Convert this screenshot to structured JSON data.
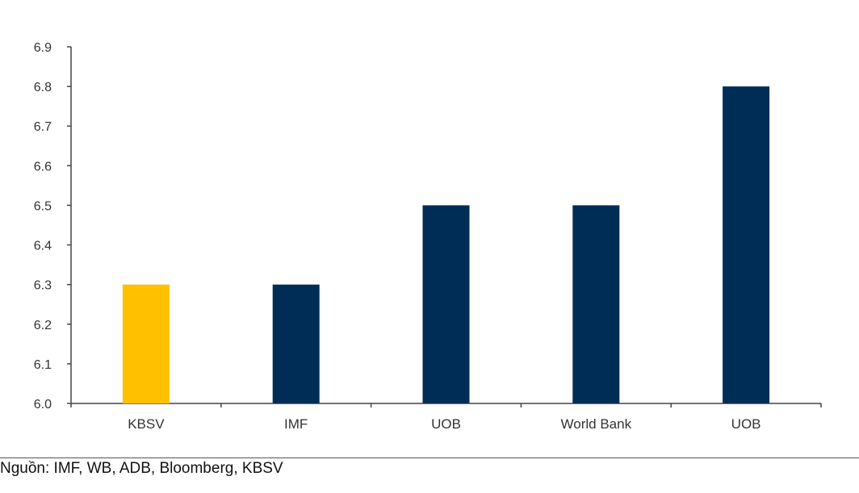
{
  "chart_data": {
    "type": "bar",
    "categories": [
      "KBSV",
      "IMF",
      "UOB",
      "World Bank",
      "UOB"
    ],
    "values": [
      6.3,
      6.3,
      6.5,
      6.5,
      6.8
    ],
    "bar_colors": [
      "#FFC000",
      "#002D56",
      "#002D56",
      "#002D56",
      "#002D56"
    ],
    "ylim": [
      6.0,
      6.9
    ],
    "yticks": [
      "6.0",
      "6.1",
      "6.2",
      "6.3",
      "6.4",
      "6.5",
      "6.6",
      "6.7",
      "6.8",
      "6.9"
    ],
    "grid": false,
    "title": "",
    "xlabel": "",
    "ylabel": ""
  },
  "source": {
    "text": "Nguồn:  IMF, WB, ADB, Bloomberg, KBSV"
  }
}
